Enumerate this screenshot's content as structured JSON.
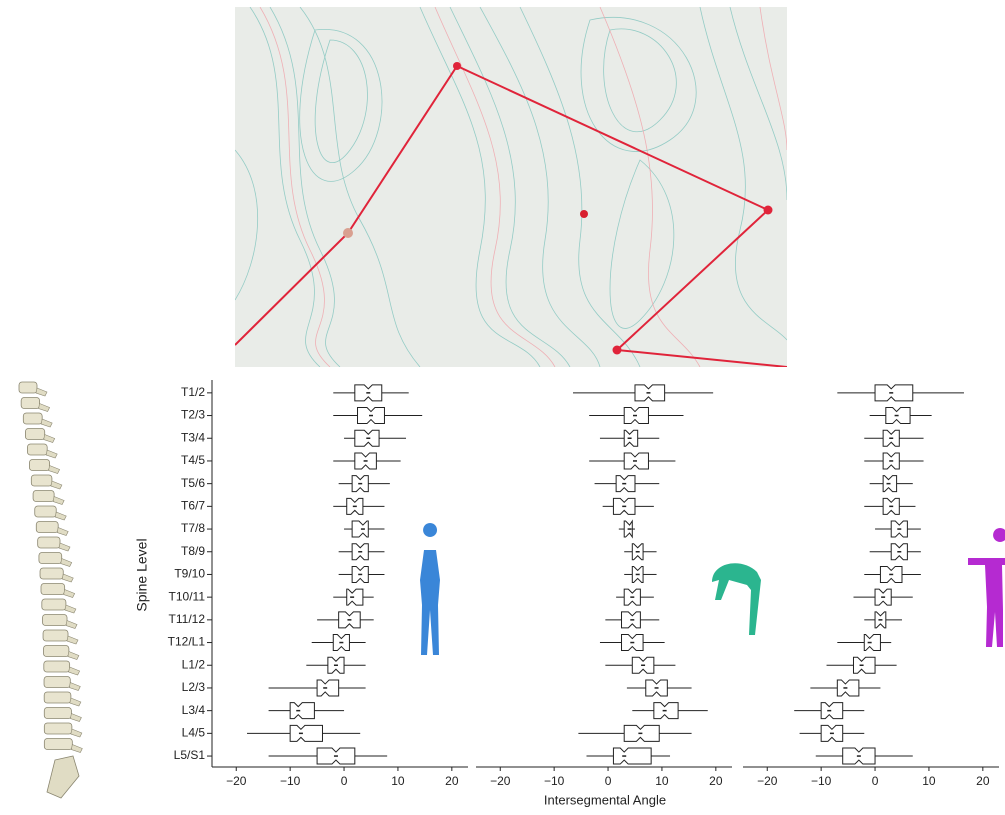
{
  "chart_data": {
    "type": "box",
    "xlabel": "Intersegmental Angle",
    "ylabel": "Spine Level",
    "categories": [
      "T1/2",
      "T2/3",
      "T3/4",
      "T4/5",
      "T5/6",
      "T6/7",
      "T7/8",
      "T8/9",
      "T9/10",
      "T10/11",
      "T11/12",
      "T12/L1",
      "L1/2",
      "L2/3",
      "L3/4",
      "L4/5",
      "L5/S1"
    ],
    "xlim": [
      -24.5,
      23
    ],
    "xticks": [
      {
        "value": -20,
        "label": "−20"
      },
      {
        "value": -10,
        "label": "−10"
      },
      0,
      10,
      20
    ],
    "color": "#222222",
    "panels": [
      {
        "values": [
          [
            -2,
            2,
            4.5,
            7,
            12
          ],
          [
            -2,
            2.5,
            5,
            7.5,
            14.5
          ],
          [
            0,
            2,
            4.5,
            6.5,
            11.5
          ],
          [
            -2,
            2,
            4,
            6,
            10.5
          ],
          [
            -1,
            1.5,
            3,
            4.5,
            8.5
          ],
          [
            -2,
            0.5,
            2,
            3.5,
            7.5
          ],
          [
            0,
            1.5,
            3.5,
            4.5,
            7.5
          ],
          [
            -1,
            1.5,
            3,
            4.5,
            7.5
          ],
          [
            -1,
            1.5,
            3,
            4.5,
            7.5
          ],
          [
            -2,
            0.5,
            1.5,
            3.5,
            5.5
          ],
          [
            -5,
            -1,
            1,
            3,
            5.5
          ],
          [
            -6,
            -2,
            -0.5,
            1,
            4
          ],
          [
            -7,
            -3,
            -1.5,
            0,
            4
          ],
          [
            -14,
            -5,
            -3.5,
            -1,
            4
          ],
          [
            -14,
            -10,
            -8.5,
            -5.5,
            0
          ],
          [
            -18,
            -10,
            -8,
            -4,
            3
          ],
          [
            -14,
            -5,
            -1.5,
            2,
            8
          ]
        ]
      },
      {
        "values": [
          [
            -6.5,
            5,
            7.5,
            10.5,
            19.5
          ],
          [
            -3.5,
            3,
            5,
            7.5,
            14
          ],
          [
            -1.5,
            3,
            4,
            5.5,
            9.5
          ],
          [
            -3.5,
            3,
            5,
            7.5,
            12.5
          ],
          [
            -2.5,
            1.5,
            3,
            5,
            9.5
          ],
          [
            -1,
            1,
            3,
            5,
            8.5
          ],
          [
            2,
            3,
            4,
            4.5,
            5
          ],
          [
            3,
            4.5,
            5.5,
            6.5,
            9
          ],
          [
            3,
            4.5,
            5.5,
            6.5,
            9
          ],
          [
            1.5,
            3,
            4.5,
            6,
            8.5
          ],
          [
            -0.5,
            2.5,
            4.5,
            6,
            9.5
          ],
          [
            -1.5,
            2.5,
            4.5,
            6.5,
            10.5
          ],
          [
            -0.5,
            4.5,
            6.5,
            8.5,
            12.5
          ],
          [
            3.5,
            7,
            9,
            11,
            15.5
          ],
          [
            4.5,
            8.5,
            10.5,
            13,
            18.5
          ],
          [
            -5.5,
            3,
            6,
            9.5,
            15.5
          ],
          [
            -4,
            1,
            3,
            8,
            11.5
          ]
        ]
      },
      {
        "values": [
          [
            -7,
            0,
            3,
            7,
            16.5
          ],
          [
            -1,
            2,
            4,
            6.5,
            10.5
          ],
          [
            -2,
            1.5,
            3,
            4.5,
            9
          ],
          [
            -2,
            1.5,
            3,
            4.5,
            9
          ],
          [
            -1,
            1.5,
            2.5,
            4,
            7
          ],
          [
            -2,
            1.5,
            3,
            4.5,
            7.5
          ],
          [
            0,
            3,
            4.5,
            6,
            8.5
          ],
          [
            -1,
            3,
            4.5,
            6,
            8.5
          ],
          [
            -2,
            1,
            3,
            5,
            8.5
          ],
          [
            -4,
            0,
            1.5,
            3,
            7
          ],
          [
            -2,
            0,
            1,
            2,
            5
          ],
          [
            -7,
            -2,
            -1,
            1,
            3
          ],
          [
            -9,
            -4,
            -2.5,
            0,
            4
          ],
          [
            -12,
            -7,
            -5.5,
            -3,
            1
          ],
          [
            -15,
            -10,
            -8.5,
            -6,
            -2
          ],
          [
            -14,
            -10,
            -8,
            -6,
            -2
          ],
          [
            -11,
            -6,
            -3,
            0,
            7
          ]
        ]
      }
    ]
  }
}
